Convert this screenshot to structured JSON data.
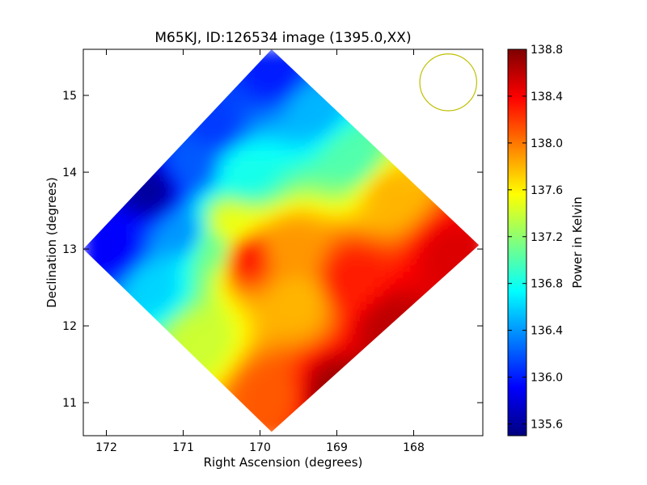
{
  "chart_data": {
    "type": "heatmap",
    "title": "M65KJ, ID:126534 image (1395.0,XX)",
    "xlabel": "Right Ascension (degrees)",
    "ylabel": "Declination (degrees)",
    "xlim": [
      172.3,
      167.1
    ],
    "ylim": [
      10.57,
      15.6
    ],
    "x_ticks": [
      172,
      171,
      170,
      169,
      168
    ],
    "x_tick_labels": [
      "172",
      "171",
      "170",
      "169",
      "168"
    ],
    "y_ticks": [
      11,
      12,
      13,
      14,
      15
    ],
    "y_tick_labels": [
      "11",
      "12",
      "13",
      "14",
      "15"
    ],
    "colorbar": {
      "label": "Power in Kelvin",
      "range": [
        135.5,
        138.8
      ],
      "ticks": [
        135.6,
        136.0,
        136.4,
        136.8,
        137.2,
        137.6,
        138.0,
        138.4,
        138.8
      ],
      "tick_labels": [
        "135.6",
        "136.0",
        "136.4",
        "136.8",
        "137.2",
        "137.6",
        "138.0",
        "138.4",
        "138.8"
      ],
      "colormap": "jet",
      "colormap_stops": [
        "#00007f",
        "#0000ff",
        "#007fff",
        "#00ffff",
        "#7fff7f",
        "#ffff00",
        "#ff7f00",
        "#ff0000",
        "#7f0000"
      ]
    },
    "footprint": {
      "shape": "diamond",
      "corners": [
        {
          "ra": 169.85,
          "dec": 15.6
        },
        {
          "ra": 167.15,
          "dec": 13.05
        },
        {
          "ra": 169.85,
          "dec": 10.62
        },
        {
          "ra": 172.3,
          "dec": 13.0
        }
      ]
    },
    "samples": [
      {
        "ra": 169.8,
        "dec": 15.3,
        "value": 136.0
      },
      {
        "ra": 170.6,
        "dec": 14.6,
        "value": 136.1
      },
      {
        "ra": 171.4,
        "dec": 13.75,
        "value": 135.6
      },
      {
        "ra": 171.9,
        "dec": 13.0,
        "value": 135.9
      },
      {
        "ra": 171.4,
        "dec": 12.5,
        "value": 136.6
      },
      {
        "ra": 170.8,
        "dec": 11.8,
        "value": 137.4
      },
      {
        "ra": 169.9,
        "dec": 11.1,
        "value": 138.1
      },
      {
        "ra": 169.0,
        "dec": 11.1,
        "value": 138.7
      },
      {
        "ra": 168.3,
        "dec": 12.0,
        "value": 138.6
      },
      {
        "ra": 167.5,
        "dec": 12.9,
        "value": 138.5
      },
      {
        "ra": 168.3,
        "dec": 13.7,
        "value": 137.8
      },
      {
        "ra": 168.8,
        "dec": 14.2,
        "value": 137.0
      },
      {
        "ra": 169.3,
        "dec": 14.8,
        "value": 136.5
      },
      {
        "ra": 170.2,
        "dec": 14.0,
        "value": 136.8
      },
      {
        "ra": 170.4,
        "dec": 13.3,
        "value": 137.5
      },
      {
        "ra": 170.2,
        "dec": 12.9,
        "value": 138.3
      },
      {
        "ra": 169.6,
        "dec": 13.0,
        "value": 137.9
      },
      {
        "ra": 169.5,
        "dec": 12.3,
        "value": 137.8
      },
      {
        "ra": 168.8,
        "dec": 12.6,
        "value": 138.3
      },
      {
        "ra": 170.6,
        "dec": 13.0,
        "value": 137.1
      },
      {
        "ra": 171.0,
        "dec": 13.2,
        "value": 136.4
      },
      {
        "ra": 170.9,
        "dec": 14.1,
        "value": 136.2
      }
    ],
    "beam": {
      "shape": "circle",
      "ra": 167.55,
      "dec": 15.17,
      "radius_deg": 0.37,
      "color": "#bfbf00"
    }
  }
}
